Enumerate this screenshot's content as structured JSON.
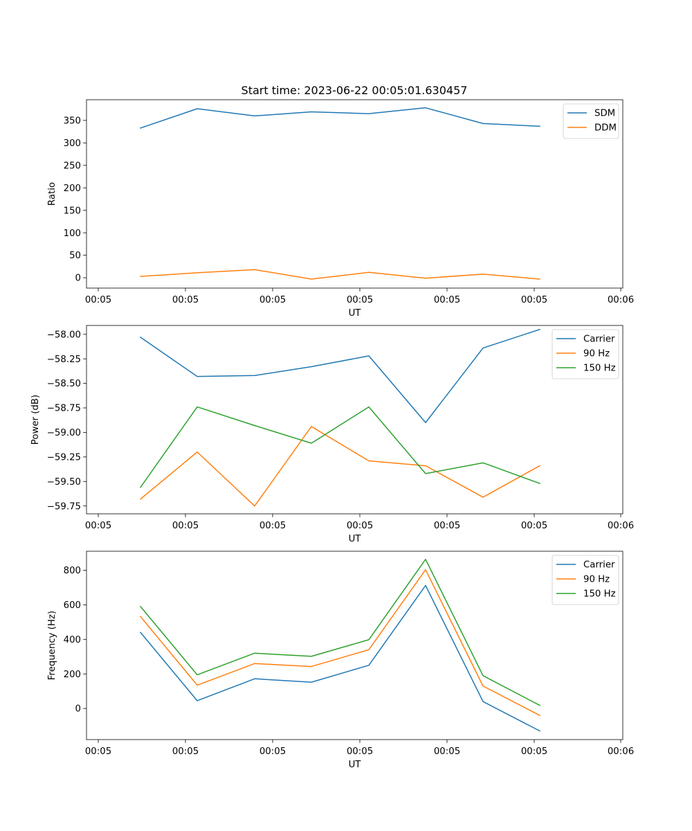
{
  "chart_data": [
    {
      "type": "line",
      "title": "Start time: 2023-06-22 00:05:01.630457",
      "xlabel": "UT",
      "ylabel": "Ratio",
      "x_tick_labels": [
        "00:05",
        "00:05",
        "00:05",
        "00:05",
        "00:05",
        "00:05",
        "00:06"
      ],
      "y_ticks": [
        0,
        50,
        100,
        150,
        200,
        250,
        300,
        350
      ],
      "ylim": [
        -23,
        396
      ],
      "legend": "top-right",
      "series": [
        {
          "name": "SDM",
          "color": "#1f77b4",
          "values": [
            333,
            376,
            360,
            369,
            365,
            378,
            343,
            337
          ]
        },
        {
          "name": "DDM",
          "color": "#ff7f0e",
          "values": [
            3,
            11,
            18,
            -3,
            12,
            -1,
            8,
            -3
          ]
        }
      ]
    },
    {
      "type": "line",
      "xlabel": "UT",
      "ylabel": "Power (dB)",
      "x_tick_labels": [
        "00:05",
        "00:05",
        "00:05",
        "00:05",
        "00:05",
        "00:05",
        "00:06"
      ],
      "y_ticks": [
        -58.0,
        -58.25,
        -58.5,
        -58.75,
        -59.0,
        -59.25,
        -59.5,
        -59.75
      ],
      "y_tick_labels": [
        "−58.00",
        "−58.25",
        "−58.50",
        "−58.75",
        "−59.00",
        "−59.25",
        "−59.50",
        "−59.75"
      ],
      "ylim": [
        -59.83,
        -57.91
      ],
      "legend": "top-right",
      "series": [
        {
          "name": "Carrier",
          "color": "#1f77b4",
          "values": [
            -58.03,
            -58.43,
            -58.42,
            -58.33,
            -58.22,
            -58.9,
            -58.14,
            -57.95
          ]
        },
        {
          "name": "90 Hz",
          "color": "#ff7f0e",
          "values": [
            -59.68,
            -59.2,
            -59.75,
            -58.94,
            -59.29,
            -59.34,
            -59.66,
            -59.34
          ]
        },
        {
          "name": "150 Hz",
          "color": "#2ca02c",
          "values": [
            -59.56,
            -58.74,
            -58.93,
            -59.11,
            -58.74,
            -59.42,
            -59.31,
            -59.52
          ]
        }
      ]
    },
    {
      "type": "line",
      "xlabel": "UT",
      "ylabel": "Frequency (Hz)",
      "x_tick_labels": [
        "00:05",
        "00:05",
        "00:05",
        "00:05",
        "00:05",
        "00:05",
        "00:06"
      ],
      "y_ticks": [
        0,
        200,
        400,
        600,
        800
      ],
      "ylim": [
        -180,
        910
      ],
      "legend": "top-right",
      "series": [
        {
          "name": "Carrier",
          "color": "#1f77b4",
          "values": [
            440,
            45,
            172,
            152,
            250,
            712,
            40,
            -130
          ]
        },
        {
          "name": "90 Hz",
          "color": "#ff7f0e",
          "values": [
            532,
            135,
            260,
            243,
            340,
            803,
            130,
            -40
          ]
        },
        {
          "name": "150 Hz",
          "color": "#2ca02c",
          "values": [
            590,
            195,
            320,
            302,
            398,
            863,
            190,
            18
          ]
        }
      ]
    }
  ]
}
